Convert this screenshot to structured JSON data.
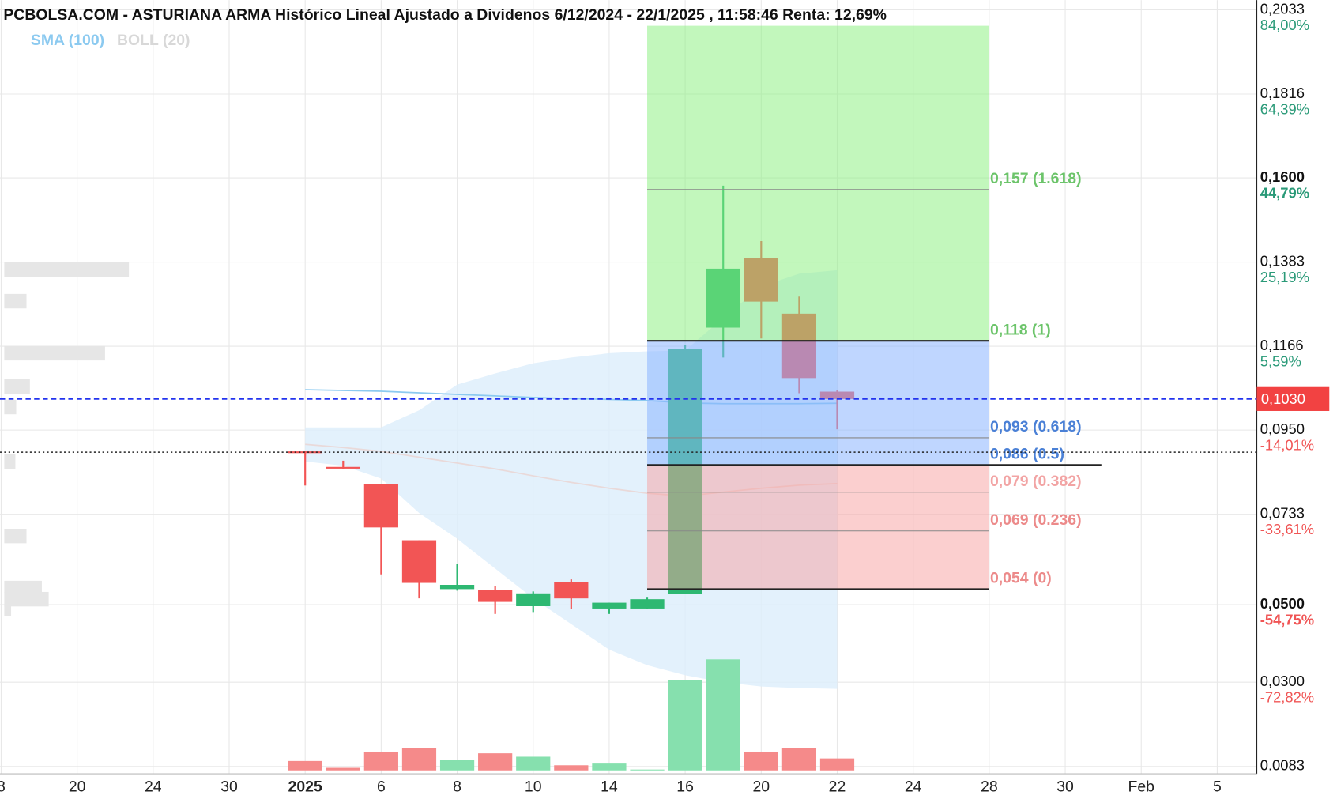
{
  "chart_data": {
    "type": "candlestick",
    "title": "PCBOLSA.COM - ASTURIANA ARMA Histórico Lineal Ajustado a Dividenos 6/12/2024 - 22/1/2025 , 11:58:46 Renta: 12,69%",
    "legend": [
      {
        "name": "SMA (100)",
        "color": "#8ccaf0"
      },
      {
        "name": "BOLL (20)",
        "color": "#d8d8d8"
      }
    ],
    "x": [
      0,
      1,
      2,
      3,
      4,
      5,
      6,
      7,
      8,
      9,
      10,
      11,
      12,
      13,
      14
    ],
    "open": [
      0.0895,
      0.0855,
      0.0811,
      0.0666,
      0.054,
      0.0538,
      0.0496,
      0.0558,
      0.049,
      0.049,
      0.0527,
      0.1214,
      0.1393,
      0.125,
      0.1049
    ],
    "high": [
      0.0897,
      0.0871,
      0.0811,
      0.0666,
      0.0606,
      0.0547,
      0.0534,
      0.0565,
      0.0505,
      0.052,
      0.117,
      0.158,
      0.1437,
      0.1294,
      0.1053
    ],
    "low": [
      0.0807,
      0.0849,
      0.0578,
      0.0516,
      0.0536,
      0.0476,
      0.0481,
      0.0488,
      0.0476,
      0.049,
      0.0527,
      0.1137,
      0.1186,
      0.1045,
      0.0952
    ],
    "close": [
      0.0893,
      0.0851,
      0.0699,
      0.0556,
      0.0551,
      0.0507,
      0.0529,
      0.0516,
      0.0505,
      0.0514,
      0.1159,
      0.1366,
      0.1281,
      0.1084,
      0.103
    ],
    "volumes": [
      11,
      3,
      22,
      26,
      12,
      20,
      16,
      6,
      8,
      1,
      106,
      130,
      22,
      26,
      14
    ],
    "boll_upper": [
      0.0957,
      0.0957,
      0.0957,
      0.1001,
      0.1067,
      0.1096,
      0.1122,
      0.1137,
      0.1148,
      0.1153,
      0.1155,
      0.1239,
      0.132,
      0.1353,
      0.1362
    ],
    "boll_lower": [
      0.0869,
      0.0858,
      0.0825,
      0.0736,
      0.067,
      0.0593,
      0.0516,
      0.045,
      0.0384,
      0.0344,
      0.0318,
      0.03,
      0.0289,
      0.0285,
      0.0283
    ],
    "boll_mid": [
      0.0913,
      0.0905,
      0.0895,
      0.088,
      0.0865,
      0.085,
      0.0832,
      0.0815,
      0.08,
      0.0787,
      0.078,
      0.079,
      0.08,
      0.0808,
      0.0812
    ],
    "sma": [
      0.1054,
      0.1052,
      0.105,
      0.1046,
      0.1042,
      0.1038,
      0.1034,
      0.1031,
      0.1029,
      0.1026,
      0.102,
      0.1018,
      0.1018,
      0.1018,
      0.1019
    ],
    "up_color": "#2eb872",
    "down_color": "#f25555",
    "xlim": [
      -8.03,
      25.04
    ],
    "xticks": [
      {
        "value": -8,
        "label": "8"
      },
      {
        "value": -6,
        "label": "20"
      },
      {
        "value": -4,
        "label": "24"
      },
      {
        "value": -2,
        "label": "30"
      },
      {
        "value": 0,
        "label": "2025"
      },
      {
        "value": 2,
        "label": "6"
      },
      {
        "value": 4,
        "label": "8"
      },
      {
        "value": 6,
        "label": "10"
      },
      {
        "value": 8,
        "label": "14"
      },
      {
        "value": 10,
        "label": "16"
      },
      {
        "value": 12,
        "label": "20"
      },
      {
        "value": 14,
        "label": "22"
      },
      {
        "value": 16,
        "label": "24"
      },
      {
        "value": 18,
        "label": "28"
      },
      {
        "value": 20,
        "label": "30"
      },
      {
        "value": 22,
        "label": "Feb"
      },
      {
        "value": 24,
        "label": "5"
      }
    ],
    "ylim": [
      0.0064,
      0.2058
    ],
    "yticks": [
      {
        "value": 0.2033,
        "label": "0,2033"
      },
      {
        "value": 0.1816,
        "label": "0,1816"
      },
      {
        "value": 0.16,
        "label": "0,1600"
      },
      {
        "value": 0.1383,
        "label": "0,1383"
      },
      {
        "value": 0.1166,
        "label": "0,1166"
      },
      {
        "value": 0.095,
        "label": "0,0950"
      },
      {
        "value": 0.0733,
        "label": "0,0733"
      },
      {
        "value": 0.05,
        "label": "0,0500"
      },
      {
        "value": 0.03,
        "label": "0,0300"
      },
      {
        "value": 0.0083,
        "label": "0.0083"
      }
    ],
    "ytick_pct": [
      "84,00%",
      "64,39%",
      "44,79%",
      "25,19%",
      "5,59%",
      "-14,01%",
      "-33,61%",
      "-54,75%",
      "-72,82%"
    ],
    "grid": true,
    "current_price": {
      "value": 0.103,
      "label": "0,1030"
    },
    "reference_price": 0.0893,
    "fib_range": [
      9,
      18
    ],
    "fib_levels": [
      {
        "value": 0.157,
        "label": "0,157 (1.618)",
        "color": "#6cc46a"
      },
      {
        "value": 0.118,
        "label": "0,118 (1)",
        "color": "#6cc46a"
      },
      {
        "value": 0.093,
        "label": "0,093 (0.618)",
        "color": "#4a80d6"
      },
      {
        "value": 0.086,
        "label": "0,086 (0.5)",
        "color": "#4a80d6"
      },
      {
        "value": 0.079,
        "label": "0,079 (0.382)",
        "color": "#f2a4a4"
      },
      {
        "value": 0.069,
        "label": "0,069 (0.236)",
        "color": "#ec8a8a"
      },
      {
        "value": 0.054,
        "label": "0,054 (0)",
        "color": "#ec8a8a"
      }
    ]
  }
}
